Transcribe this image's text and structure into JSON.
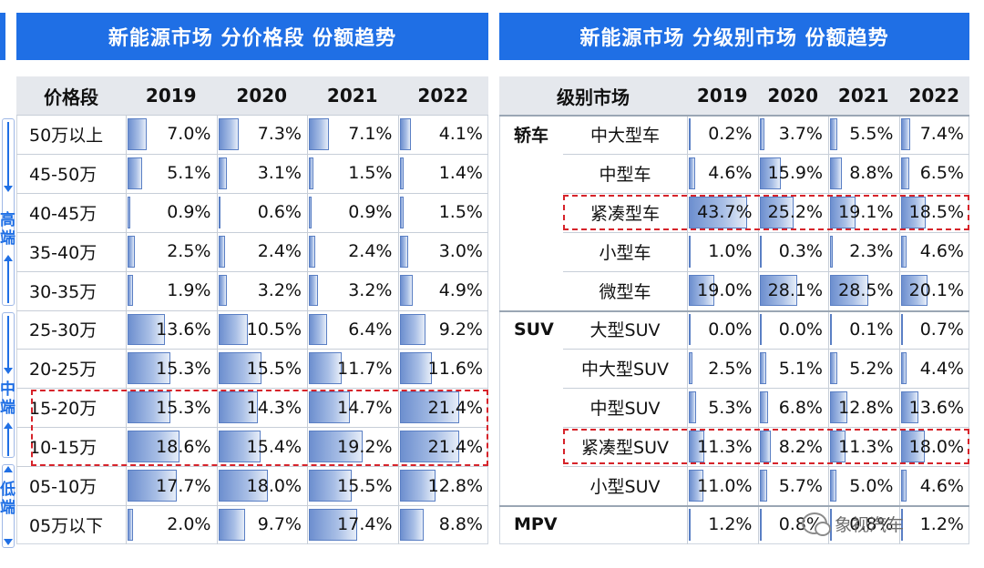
{
  "left_banner": "新能源市场 分价格段 份额趋势",
  "right_banner": "新能源市场 分级别市场 份额趋势",
  "side_labels": {
    "high": "高端",
    "mid": "中端",
    "low": "低端"
  },
  "watermark": "象视汽车",
  "chart_data": [
    {
      "type": "table",
      "title": "新能源市场 分价格段 份额趋势",
      "row_header": "价格段",
      "columns": [
        "2019",
        "2020",
        "2021",
        "2022"
      ],
      "rows": [
        {
          "label": "50万以上",
          "values": [
            7.0,
            7.3,
            7.1,
            4.1
          ],
          "display": [
            "7.0%",
            "7.3%",
            "7.1%",
            "4.1%"
          ]
        },
        {
          "label": "45-50万",
          "values": [
            5.1,
            3.1,
            1.5,
            1.4
          ],
          "display": [
            "5.1%",
            "3.1%",
            "1.5%",
            "1.4%"
          ]
        },
        {
          "label": "40-45万",
          "values": [
            0.9,
            0.6,
            0.9,
            1.5
          ],
          "display": [
            "0.9%",
            "0.6%",
            "0.9%",
            "1.5%"
          ]
        },
        {
          "label": "35-40万",
          "values": [
            2.5,
            2.4,
            2.4,
            3.0
          ],
          "display": [
            "2.5%",
            "2.4%",
            "2.4%",
            "3.0%"
          ]
        },
        {
          "label": "30-35万",
          "values": [
            1.9,
            3.2,
            3.2,
            4.9
          ],
          "display": [
            "1.9%",
            "3.2%",
            "3.2%",
            "4.9%"
          ]
        },
        {
          "label": "25-30万",
          "values": [
            13.6,
            10.5,
            6.4,
            9.2
          ],
          "display": [
            "13.6%",
            "10.5%",
            "6.4%",
            "9.2%"
          ]
        },
        {
          "label": "20-25万",
          "values": [
            15.3,
            15.5,
            11.7,
            11.6
          ],
          "display": [
            "15.3%",
            "15.5%",
            "11.7%",
            "11.6%"
          ]
        },
        {
          "label": "15-20万",
          "values": [
            15.3,
            14.3,
            14.7,
            21.4
          ],
          "display": [
            "15.3%",
            "14.3%",
            "14.7%",
            "21.4%"
          ],
          "highlight": true
        },
        {
          "label": "10-15万",
          "values": [
            18.6,
            15.4,
            19.2,
            21.4
          ],
          "display": [
            "18.6%",
            "15.4%",
            "19.2%",
            "21.4%"
          ],
          "highlight": true
        },
        {
          "label": "05-10万",
          "values": [
            17.7,
            18.0,
            15.5,
            12.8
          ],
          "display": [
            "17.7%",
            "18.0%",
            "15.5%",
            "12.8%"
          ]
        },
        {
          "label": "05万以下",
          "values": [
            2.0,
            9.7,
            17.4,
            8.8
          ],
          "display": [
            "2.0%",
            "9.7%",
            "17.4%",
            "8.8%"
          ]
        }
      ],
      "bar_max": 30
    },
    {
      "type": "table",
      "title": "新能源市场 分级别市场 份额趋势",
      "row_header": "级别市场",
      "columns": [
        "2019",
        "2020",
        "2021",
        "2022"
      ],
      "groups": [
        {
          "name": "轿车",
          "rows": [
            {
              "label": "中大型车",
              "values": [
                0.2,
                3.7,
                5.5,
                7.4
              ],
              "display": [
                "0.2%",
                "3.7%",
                "5.5%",
                "7.4%"
              ]
            },
            {
              "label": "中型车",
              "values": [
                4.6,
                15.9,
                8.8,
                6.5
              ],
              "display": [
                "4.6%",
                "15.9%",
                "8.8%",
                "6.5%"
              ]
            },
            {
              "label": "紧凑型车",
              "values": [
                43.7,
                25.2,
                19.1,
                18.5
              ],
              "display": [
                "43.7%",
                "25.2%",
                "19.1%",
                "18.5%"
              ],
              "highlight": true
            },
            {
              "label": "小型车",
              "values": [
                1.0,
                0.3,
                2.3,
                4.6
              ],
              "display": [
                "1.0%",
                "0.3%",
                "2.3%",
                "4.6%"
              ]
            },
            {
              "label": "微型车",
              "values": [
                19.0,
                28.1,
                28.5,
                20.1
              ],
              "display": [
                "19.0%",
                "28.1%",
                "28.5%",
                "20.1%"
              ]
            }
          ]
        },
        {
          "name": "SUV",
          "rows": [
            {
              "label": "大型SUV",
              "values": [
                0.0,
                0.0,
                0.1,
                0.7
              ],
              "display": [
                "0.0%",
                "0.0%",
                "0.1%",
                "0.7%"
              ]
            },
            {
              "label": "中大型SUV",
              "values": [
                2.5,
                5.1,
                5.2,
                4.4
              ],
              "display": [
                "2.5%",
                "5.1%",
                "5.2%",
                "4.4%"
              ]
            },
            {
              "label": "中型SUV",
              "values": [
                5.3,
                6.8,
                12.8,
                13.6
              ],
              "display": [
                "5.3%",
                "6.8%",
                "12.8%",
                "13.6%"
              ]
            },
            {
              "label": "紧凑型SUV",
              "values": [
                11.3,
                8.2,
                11.3,
                18.0
              ],
              "display": [
                "11.3%",
                "8.2%",
                "11.3%",
                "18.0%"
              ],
              "highlight": true
            },
            {
              "label": "小型SUV",
              "values": [
                11.0,
                5.7,
                5.0,
                4.6
              ],
              "display": [
                "11.0%",
                "5.7%",
                "5.0%",
                "4.6%"
              ]
            }
          ]
        },
        {
          "name": "MPV",
          "rows": [
            {
              "label": "",
              "values": [
                1.2,
                0.8,
                0.8,
                1.2
              ],
              "display": [
                "1.2%",
                "0.8%",
                "0.8%",
                "1.2%"
              ]
            }
          ]
        }
      ],
      "bar_max": 50
    }
  ]
}
